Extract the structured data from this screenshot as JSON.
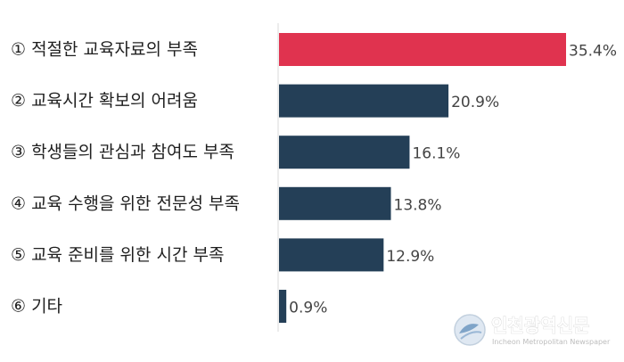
{
  "chart_data": {
    "type": "bar",
    "orientation": "horizontal",
    "categories": [
      "① 적절한 교육자료의 부족",
      "② 교육시간 확보의 어려움",
      "③ 학생들의 관심과 참여도 부족",
      "④ 교육 수행을 위한 전문성 부족",
      "⑤ 교육 준비를 위한 시간 부족",
      "⑥ 기타"
    ],
    "values": [
      35.4,
      20.9,
      16.1,
      13.8,
      12.9,
      0.9
    ],
    "value_labels": [
      "35.4%",
      "20.9%",
      "16.1%",
      "13.8%",
      "12.9%",
      "0.9%"
    ],
    "xlim": [
      0,
      35.4
    ],
    "grid": false,
    "legend": "none",
    "colors": {
      "highlight": "#e0334f",
      "default": "#243f57"
    },
    "highlight_index": 0
  },
  "watermark": {
    "name": "인천광역신문",
    "subtitle": "Incheon Metropolitan Newspaper"
  }
}
